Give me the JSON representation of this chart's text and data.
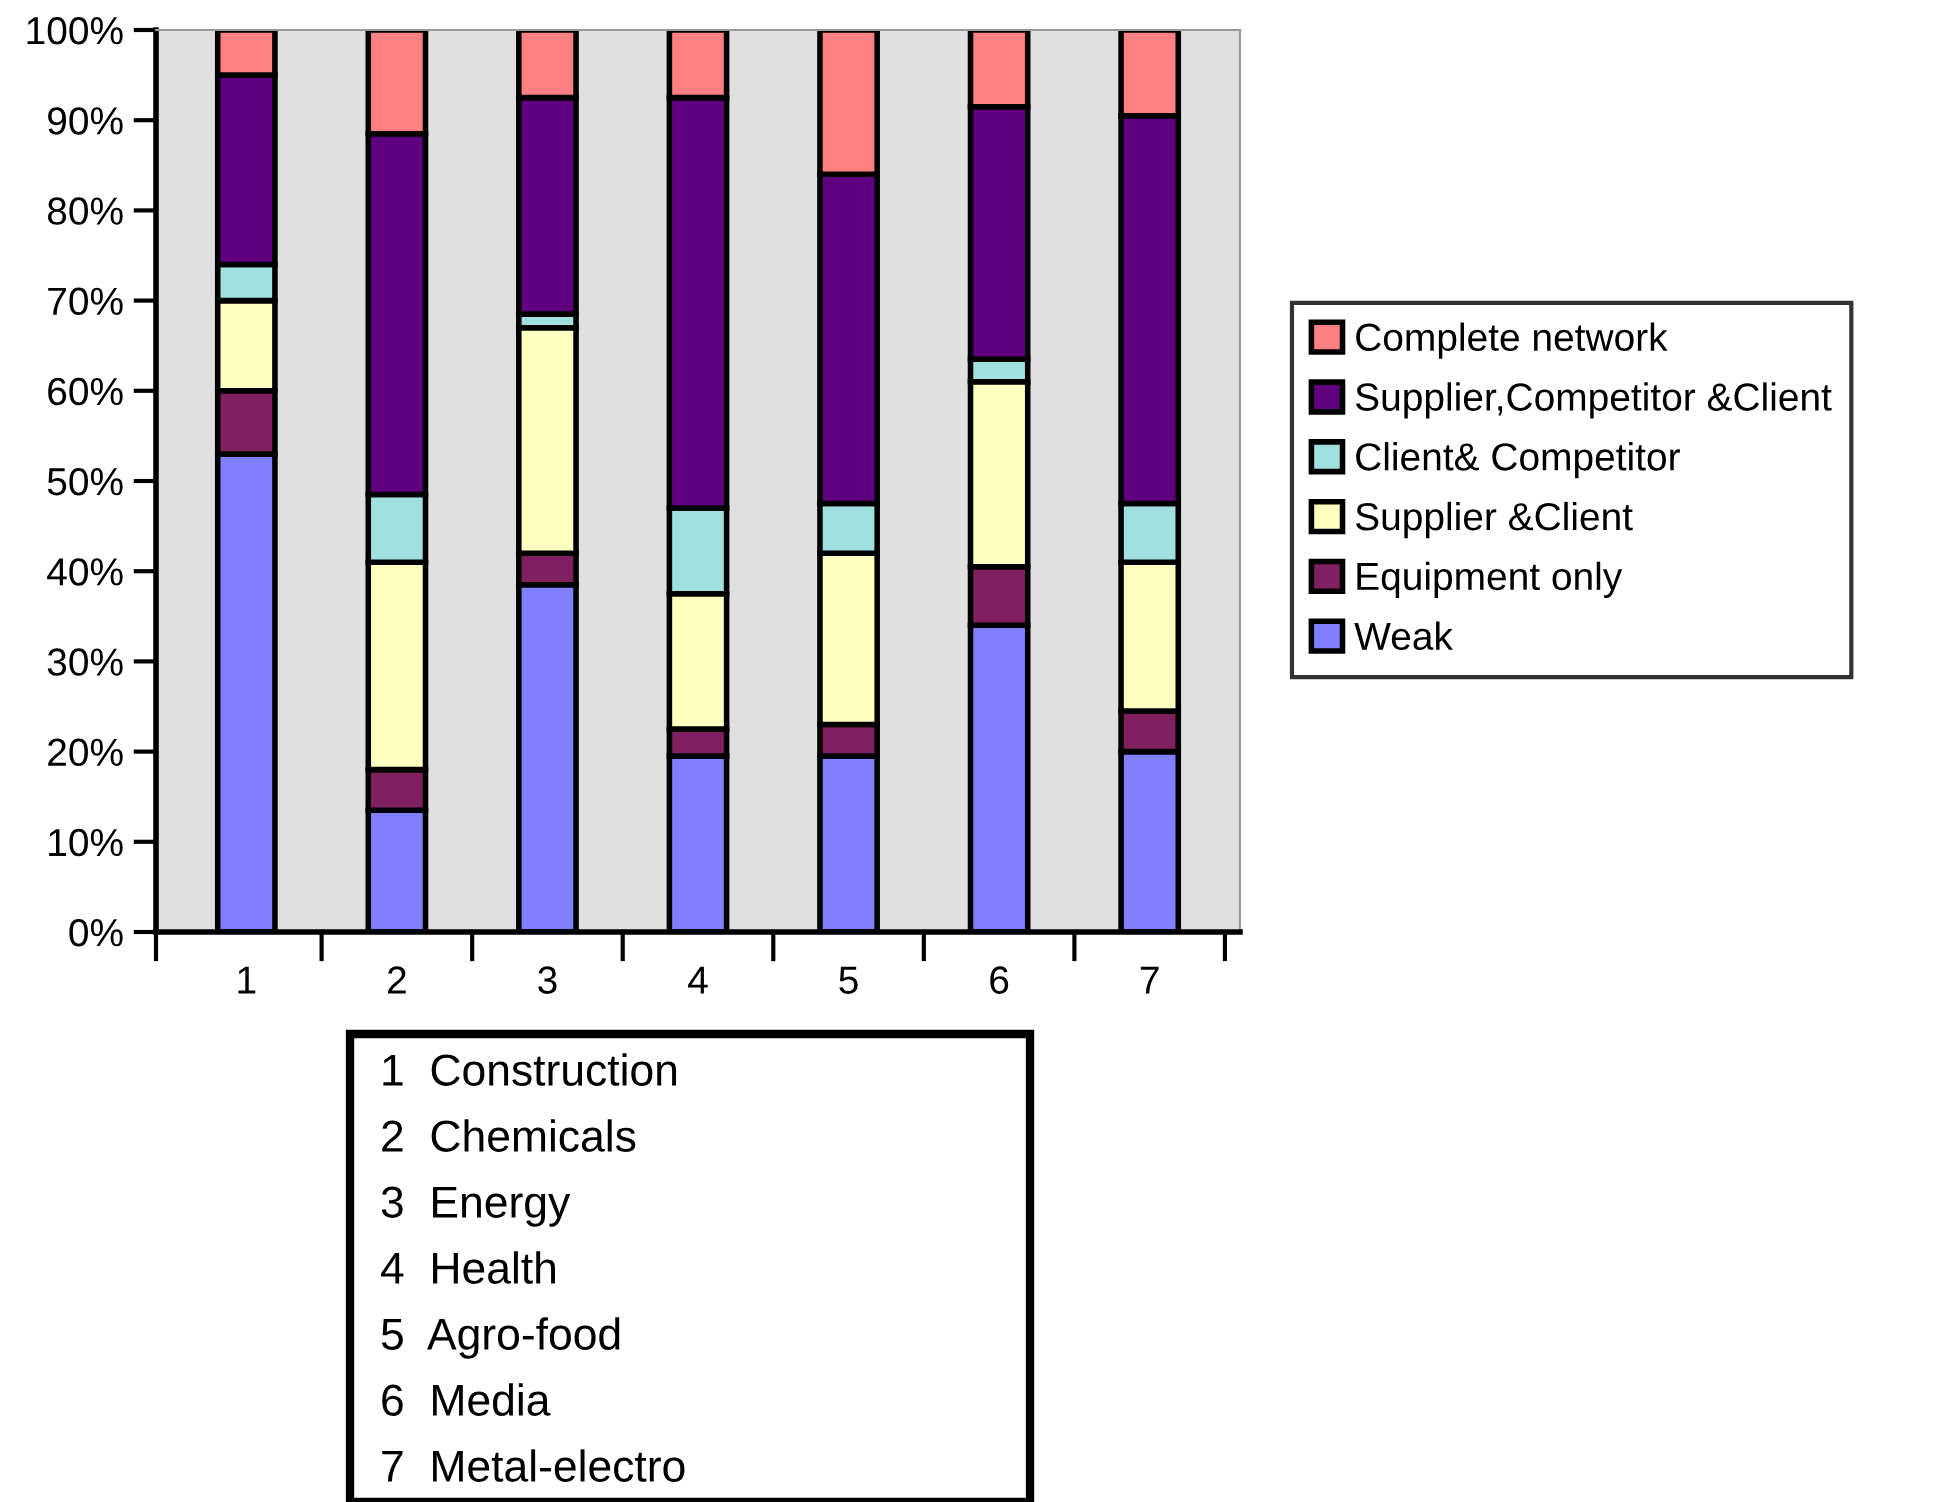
{
  "chart_data": {
    "type": "bar",
    "stacked": true,
    "categories": [
      "1",
      "2",
      "3",
      "4",
      "5",
      "6",
      "7"
    ],
    "series": [
      {
        "name": "Weak",
        "color": "#8080ff",
        "values": [
          53,
          13.5,
          38.5,
          19.5,
          19.5,
          34,
          20
        ]
      },
      {
        "name": "Equipment only",
        "color": "#802060",
        "values": [
          7,
          4.5,
          3.5,
          3,
          3.5,
          6.5,
          4.5
        ]
      },
      {
        "name": "Supplier &Client",
        "color": "#ffffc0",
        "values": [
          10,
          23,
          25,
          15,
          19,
          20.5,
          16.5
        ]
      },
      {
        "name": "Client& Competitor",
        "color": "#a0e0e0",
        "values": [
          4,
          7.5,
          1.5,
          9.5,
          5.5,
          2.5,
          6.5
        ]
      },
      {
        "name": "Supplier,Competitor &Client",
        "color": "#600080",
        "values": [
          21,
          40,
          24,
          45.5,
          36.5,
          28,
          43
        ]
      },
      {
        "name": "Complete network",
        "color": "#ff8080",
        "values": [
          5,
          11.5,
          7.5,
          7.5,
          16,
          8.5,
          9.5
        ]
      }
    ],
    "ylim": [
      0,
      100
    ],
    "yticks": [
      {
        "value": 0,
        "label": "0%"
      },
      {
        "value": 10,
        "label": "10%"
      },
      {
        "value": 20,
        "label": "20%"
      },
      {
        "value": 30,
        "label": "30%"
      },
      {
        "value": 40,
        "label": "40%"
      },
      {
        "value": 50,
        "label": "50%"
      },
      {
        "value": 60,
        "label": "60%"
      },
      {
        "value": 70,
        "label": "70%"
      },
      {
        "value": 80,
        "label": "80%"
      },
      {
        "value": 90,
        "label": "90%"
      },
      {
        "value": 100,
        "label": "100%"
      }
    ],
    "grid": false,
    "legend": "right",
    "annotations": [
      "1  Construction",
      "2  Chemicals",
      "3  Energy",
      "4  Health",
      "5  Agro-food",
      "6  Media",
      "7  Metal-electro"
    ]
  }
}
